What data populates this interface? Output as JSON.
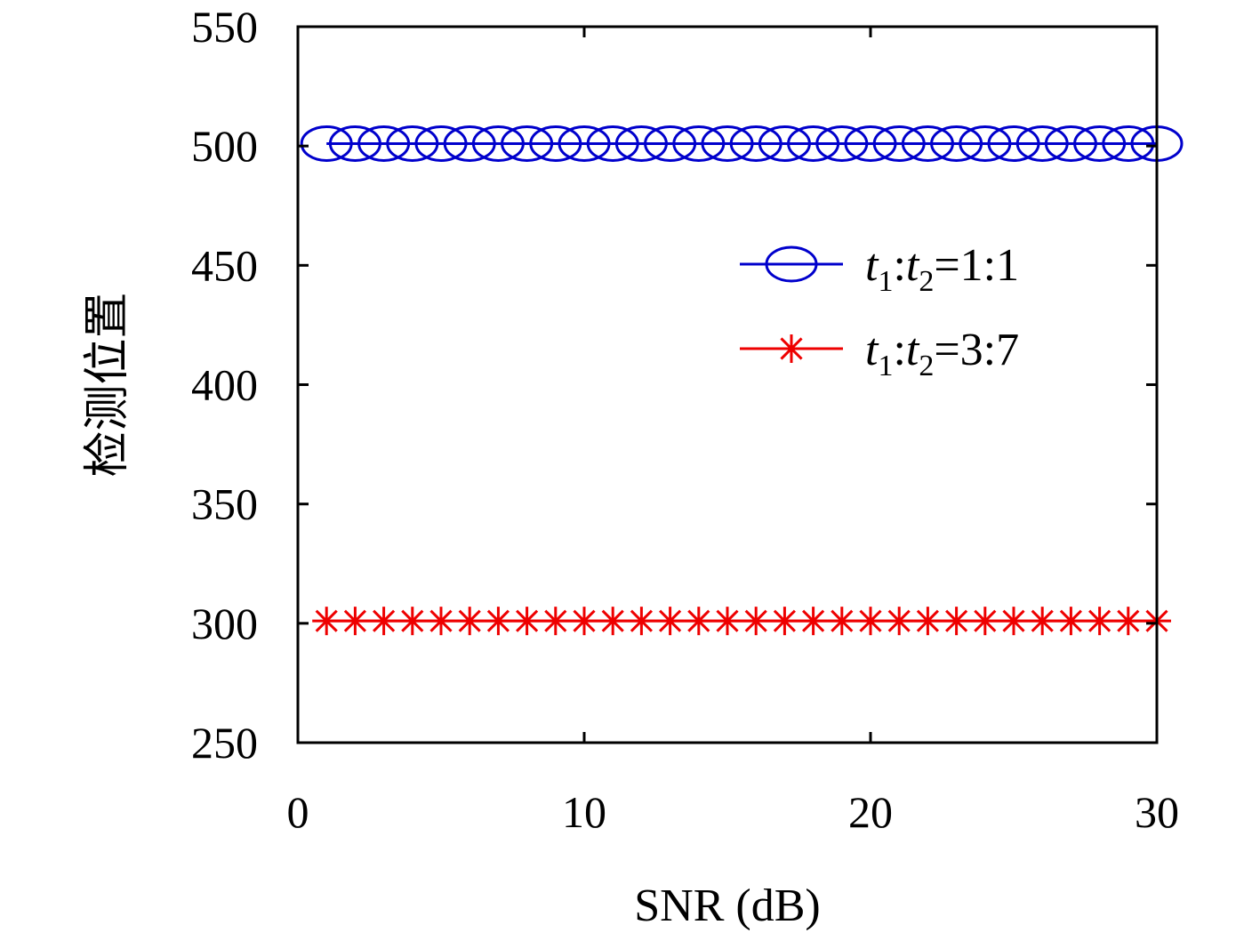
{
  "chart_data": {
    "type": "line",
    "xlabel": "SNR (dB)",
    "ylabel": "检测位置",
    "xlim": [
      0,
      30
    ],
    "ylim": [
      250,
      550
    ],
    "xticks": [
      0,
      10,
      20,
      30
    ],
    "yticks": [
      250,
      300,
      350,
      400,
      450,
      500,
      550
    ],
    "grid": false,
    "legend_position": "right",
    "x": [
      1,
      2,
      3,
      4,
      5,
      6,
      7,
      8,
      9,
      10,
      11,
      12,
      13,
      14,
      15,
      16,
      17,
      18,
      19,
      20,
      21,
      22,
      23,
      24,
      25,
      26,
      27,
      28,
      29,
      30
    ],
    "series": [
      {
        "name": "t1:t2=1:1",
        "legend_parts": {
          "t": "t",
          "sub1": "1",
          "colon1": ":",
          "sub2": "2",
          "rest": "=1:1"
        },
        "marker": "circle",
        "color": "#0000cc",
        "values": [
          501,
          501,
          501,
          501,
          501,
          501,
          501,
          501,
          501,
          501,
          501,
          501,
          501,
          501,
          501,
          501,
          501,
          501,
          501,
          501,
          501,
          501,
          501,
          501,
          501,
          501,
          501,
          501,
          501,
          501
        ]
      },
      {
        "name": "t1:t2=3:7",
        "legend_parts": {
          "t": "t",
          "sub1": "1",
          "colon1": ":",
          "sub2": "2",
          "rest": "=3:7"
        },
        "marker": "asterisk",
        "color": "#ee0000",
        "values": [
          301,
          301,
          301,
          301,
          301,
          301,
          301,
          301,
          301,
          301,
          301,
          301,
          301,
          301,
          301,
          301,
          301,
          301,
          301,
          301,
          301,
          301,
          301,
          301,
          301,
          301,
          301,
          301,
          301,
          301
        ]
      }
    ]
  }
}
